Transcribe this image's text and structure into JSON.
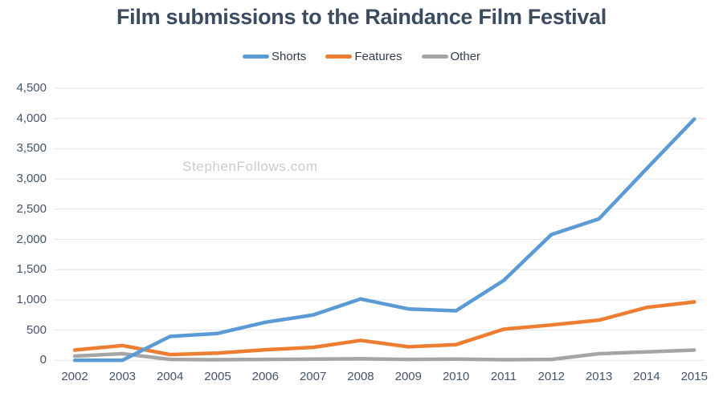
{
  "title": "Film submissions to the Raindance Film Festival",
  "watermark": "StephenFollows.com",
  "colors": {
    "grid": "#e3e4e6",
    "axis_text": "#44546a",
    "title_text": "#3b4c61",
    "legend_text": "#2f3d4e",
    "watermark_text": "#c8ccd0",
    "background": "#ffffff"
  },
  "chart_data": {
    "type": "line",
    "title": "Film submissions to the Raindance Film Festival",
    "x": [
      "2002",
      "2003",
      "2004",
      "2005",
      "2006",
      "2007",
      "2008",
      "2009",
      "2010",
      "2011",
      "2012",
      "2013",
      "2014",
      "2015"
    ],
    "series": [
      {
        "name": "Shorts",
        "color": "#5b9bd5",
        "values": [
          0,
          0,
          395,
          445,
          630,
          750,
          1015,
          850,
          820,
          1320,
          2080,
          2340,
          3170,
          3990
        ]
      },
      {
        "name": "Features",
        "color": "#ed7d31",
        "values": [
          170,
          245,
          95,
          120,
          175,
          215,
          330,
          225,
          260,
          515,
          585,
          665,
          875,
          965
        ]
      },
      {
        "name": "Other",
        "color": "#a5a5a5",
        "values": [
          70,
          110,
          15,
          10,
          15,
          20,
          25,
          15,
          20,
          10,
          15,
          110,
          140,
          170
        ]
      }
    ],
    "ylim": [
      0,
      4500
    ],
    "ytick_step": 500,
    "ytick_labels": [
      "0",
      "500",
      "1,000",
      "1,500",
      "2,000",
      "2,500",
      "3,000",
      "3,500",
      "4,000",
      "4,500"
    ],
    "xlabel": "",
    "ylabel": "",
    "grid": true,
    "legend_position": "top"
  }
}
